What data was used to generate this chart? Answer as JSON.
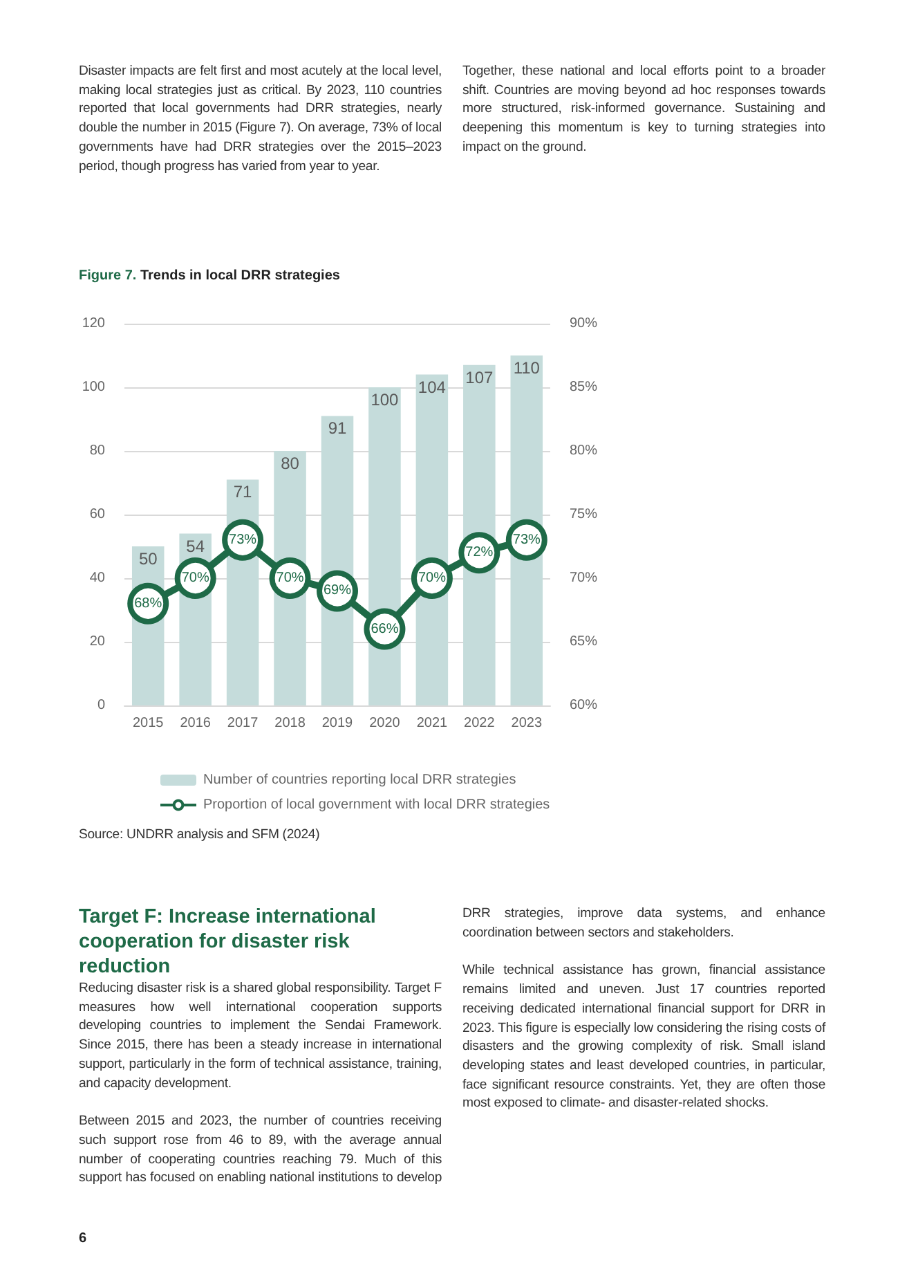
{
  "chart_data": {
    "type": "bar",
    "title": "Figure 7. Trends in local DRR strategies",
    "categories": [
      "2015",
      "2016",
      "2017",
      "2018",
      "2019",
      "2020",
      "2021",
      "2022",
      "2023"
    ],
    "series": [
      {
        "name": "Number of countries reporting local DRR strategies",
        "color": "#c5dcdb",
        "values": [
          50,
          54,
          71,
          80,
          91,
          100,
          104,
          107,
          110
        ]
      },
      {
        "name": "Proportion of local government with local DRR strategies",
        "type": "line",
        "axis": "y2",
        "color": "#1e6a47",
        "marker": "circle",
        "values": [
          68,
          70,
          73,
          70,
          69,
          66,
          70,
          72,
          73
        ],
        "value_labels": [
          "68%",
          "70%",
          "73%",
          "70%",
          "69%",
          "66%",
          "70%",
          "72%",
          "73%"
        ]
      }
    ],
    "data_labels": true,
    "ylim": [
      0,
      120
    ],
    "yticks": [
      0,
      20,
      40,
      60,
      80,
      100,
      120
    ],
    "y2lim": [
      60,
      90
    ],
    "y2ticks": [
      {
        "value": 60,
        "label": "60%"
      },
      {
        "value": 65,
        "label": "65%"
      },
      {
        "value": 70,
        "label": "70%"
      },
      {
        "value": 75,
        "label": "75%"
      },
      {
        "value": 80,
        "label": "80%"
      },
      {
        "value": 85,
        "label": "85%"
      },
      {
        "value": 90,
        "label": "90%"
      }
    ],
    "grid": "y",
    "legend": "bottom",
    "annotations": [
      "Disaster impacts are felt first and most acutely at the local level, making local strategies just as critical. By 2023, 110 countries reported that local governments had DRR strategies, nearly double the number in 2015 (Figure 7). On average, 73% of local governments have had DRR strategies over the 2015–2023 period, though progress has varied from year to year.",
      "Together, these national and local efforts point to a broader shift. Countries are moving beyond ad hoc responses towards more structured, risk-informed governance. Sustaining and deepening this momentum is key to turning strategies into impact on the ground.",
      "Source: UNDRR analysis and SFM (2024)",
      "Target F: Increase international cooperation for disaster risk reduction",
      "Reducing disaster risk is a shared global responsibility. Target F measures how well international cooperation supports developing countries to implement the Sendai Framework. Since 2015, there has been a steady increase in international support, particularly in the form of technical assistance, training, and capacity development.",
      "Between 2015 and 2023, the number of countries receiving such support rose from 46 to 89, with the average annual number of cooperating countries reaching 79. Much of this support has focused on enabling national institutions to develop DRR strategies, improve data systems, and enhance coordination between sectors and stakeholders.",
      "While technical assistance has grown, financial assistance remains limited and uneven. Just 17 countries reported receiving dedicated international financial support for DRR in 2023. This figure is especially low considering the rising costs of disasters and the growing complexity of risk. Small island developing states and least developed countries, in particular, face significant resource constraints. Yet, they are often those most exposed to climate- and disaster-related shocks.",
      "6"
    ]
  }
}
